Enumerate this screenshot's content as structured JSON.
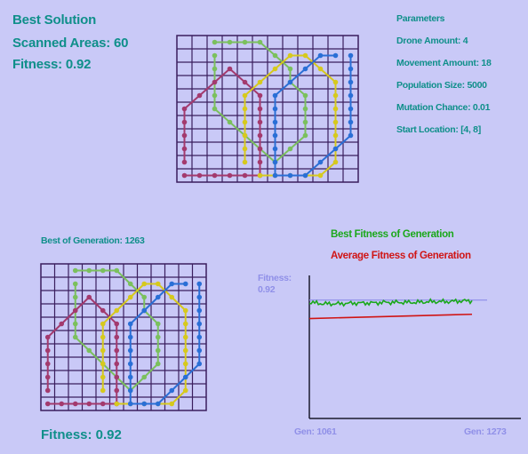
{
  "best_solution": {
    "title": "Best Solution",
    "scanned_areas": "Scanned Areas: 60",
    "fitness": "Fitness: 0.92"
  },
  "parameters": {
    "title": "Parameters",
    "drone_amount": "Drone Amount: 4",
    "movement_amount": "Movement Amount: 18",
    "population_size": "Population Size: 5000",
    "mutation_chance": "Mutation Chance: 0.01",
    "start_location": "Start Location: [4, 8]"
  },
  "generation_view": {
    "title": "Best of Generation: 1263",
    "fitness": "Fitness: 0.92"
  },
  "colors": {
    "background": "#c9c9f7",
    "grid": "#3a1e5e",
    "text": "#0f8f8a",
    "drones": [
      "#7bc05e",
      "#a33a6e",
      "#d6c91e",
      "#2a6fd6"
    ],
    "best_line": "#1aa81a",
    "avg_line": "#d01414",
    "fitness_ref": "#9090e8"
  },
  "chart_data": {
    "type": "line",
    "title": "",
    "legend": [
      "Best Fitness of Generation",
      "Average Fitness of Generation"
    ],
    "fitness_label": "Fitness:",
    "fitness_value": "0.92",
    "x_start_label": "Gen: 1061",
    "x_end_label": "Gen: 1273",
    "x_range": [
      1061,
      1273
    ],
    "ylim": [
      0,
      1
    ],
    "reference_y": 0.92,
    "series": [
      {
        "name": "Best Fitness of Generation",
        "color": "#1aa81a",
        "x": [
          1061,
          1080,
          1100,
          1120,
          1140,
          1160,
          1180,
          1200,
          1220,
          1240,
          1260,
          1273
        ],
        "y": [
          0.91,
          0.9,
          0.9,
          0.905,
          0.905,
          0.91,
          0.91,
          0.91,
          0.915,
          0.915,
          0.92,
          0.92
        ]
      },
      {
        "name": "Average Fitness of Generation",
        "color": "#d01414",
        "x": [
          1061,
          1273
        ],
        "y": [
          0.72,
          0.75
        ]
      }
    ]
  },
  "drone_paths": [
    {
      "color": "#7bc05e",
      "cells": [
        [
          2,
          0
        ],
        [
          3,
          0
        ],
        [
          4,
          0
        ],
        [
          5,
          0
        ],
        [
          6,
          1
        ],
        [
          7,
          2
        ],
        [
          7,
          3
        ],
        [
          8,
          4
        ],
        [
          8,
          5
        ],
        [
          8,
          6
        ],
        [
          8,
          7
        ],
        [
          7,
          8
        ],
        [
          6,
          9
        ],
        [
          5,
          8
        ],
        [
          4,
          7
        ],
        [
          3,
          6
        ],
        [
          2,
          5
        ],
        [
          2,
          4
        ],
        [
          2,
          3
        ],
        [
          2,
          2
        ],
        [
          2,
          1
        ]
      ]
    },
    {
      "color": "#a33a6e",
      "cells": [
        [
          0,
          10
        ],
        [
          1,
          10
        ],
        [
          2,
          10
        ],
        [
          3,
          10
        ],
        [
          4,
          10
        ],
        [
          5,
          10
        ],
        [
          5,
          9
        ],
        [
          5,
          8
        ],
        [
          5,
          7
        ],
        [
          5,
          6
        ],
        [
          5,
          5
        ],
        [
          5,
          4
        ],
        [
          4,
          3
        ],
        [
          3,
          2
        ],
        [
          2,
          3
        ],
        [
          1,
          4
        ],
        [
          0,
          5
        ],
        [
          0,
          6
        ],
        [
          0,
          7
        ],
        [
          0,
          8
        ],
        [
          0,
          9
        ]
      ]
    },
    {
      "color": "#d6c91e",
      "cells": [
        [
          5,
          10
        ],
        [
          6,
          10
        ],
        [
          7,
          10
        ],
        [
          8,
          10
        ],
        [
          9,
          10
        ],
        [
          10,
          9
        ],
        [
          10,
          8
        ],
        [
          10,
          7
        ],
        [
          10,
          6
        ],
        [
          10,
          5
        ],
        [
          10,
          4
        ],
        [
          10,
          3
        ],
        [
          9,
          2
        ],
        [
          8,
          1
        ],
        [
          7,
          1
        ],
        [
          6,
          2
        ],
        [
          5,
          3
        ],
        [
          4,
          4
        ],
        [
          4,
          5
        ],
        [
          4,
          6
        ],
        [
          4,
          7
        ],
        [
          4,
          8
        ],
        [
          4,
          9
        ]
      ]
    },
    {
      "color": "#2a6fd6",
      "cells": [
        [
          11,
          1
        ],
        [
          11,
          2
        ],
        [
          11,
          3
        ],
        [
          11,
          4
        ],
        [
          11,
          5
        ],
        [
          11,
          6
        ],
        [
          11,
          7
        ],
        [
          10,
          8
        ],
        [
          9,
          9
        ],
        [
          8,
          10
        ],
        [
          7,
          10
        ],
        [
          6,
          10
        ],
        [
          6,
          9
        ],
        [
          6,
          8
        ],
        [
          6,
          7
        ],
        [
          6,
          6
        ],
        [
          6,
          5
        ],
        [
          6,
          4
        ],
        [
          7,
          3
        ],
        [
          8,
          2
        ],
        [
          9,
          1
        ],
        [
          10,
          1
        ]
      ]
    }
  ]
}
